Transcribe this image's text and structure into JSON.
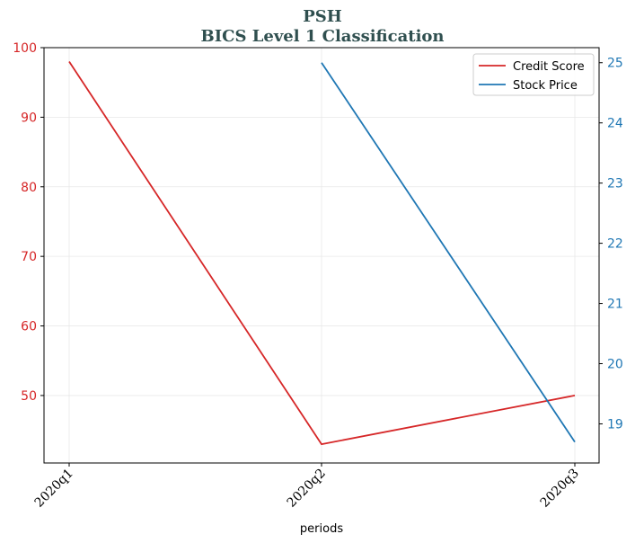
{
  "chart_data": {
    "type": "line",
    "title": "PSH",
    "subtitle": "BICS Level 1 Classification",
    "xlabel": "periods",
    "categories": [
      "2020q1",
      "2020q2",
      "2020q3"
    ],
    "grid": true,
    "legend_position": "top-right",
    "y_left": {
      "lim": [
        40.3,
        100
      ],
      "ticks": [
        50,
        60,
        70,
        80,
        90,
        100
      ],
      "color": "#d62728"
    },
    "y_right": {
      "lim": [
        18.35,
        25.25
      ],
      "ticks": [
        19,
        20,
        21,
        22,
        23,
        24,
        25
      ],
      "color": "#1f77b4"
    },
    "series": [
      {
        "name": "Credit Score",
        "axis": "left",
        "color": "#d62728",
        "values": [
          98,
          43,
          50
        ]
      },
      {
        "name": "Stock Price",
        "axis": "right",
        "color": "#1f77b4",
        "values": [
          null,
          25.0,
          18.7
        ]
      }
    ]
  }
}
